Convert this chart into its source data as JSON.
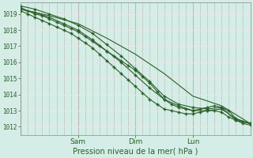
{
  "xlabel": "Pression niveau de la mer( hPa )",
  "ylim": [
    1011.5,
    1019.7
  ],
  "xlim": [
    0,
    96
  ],
  "yticks": [
    1012,
    1013,
    1014,
    1015,
    1016,
    1017,
    1018,
    1019
  ],
  "xtick_positions": [
    24,
    48,
    72
  ],
  "xtick_labels": [
    "Sam",
    "Dim",
    "Lun"
  ],
  "bg_color": "#d4ede6",
  "grid_color_v": "#c0b8b8",
  "grid_color_h": "#e8e8e8",
  "line_color": "#2a5f2a",
  "series1_x": [
    0,
    3,
    6,
    9,
    12,
    15,
    18,
    21,
    24,
    27,
    30,
    33,
    36,
    39,
    42,
    45,
    48,
    51,
    54,
    57,
    60,
    63,
    66,
    69,
    72,
    75,
    78,
    81,
    84,
    87,
    90,
    93,
    96
  ],
  "series1_y": [
    1019.4,
    1019.2,
    1019.0,
    1018.9,
    1018.7,
    1018.5,
    1018.3,
    1018.1,
    1017.9,
    1017.6,
    1017.3,
    1017.0,
    1016.7,
    1016.4,
    1016.1,
    1015.8,
    1015.5,
    1015.1,
    1014.7,
    1014.2,
    1013.7,
    1013.4,
    1013.2,
    1013.1,
    1013.0,
    1013.1,
    1013.2,
    1013.3,
    1013.2,
    1013.0,
    1012.5,
    1012.3,
    1012.2
  ],
  "series2_x": [
    0,
    3,
    6,
    9,
    12,
    15,
    18,
    21,
    24,
    27,
    30,
    33,
    36,
    39,
    42,
    45,
    48,
    51,
    54,
    57,
    60,
    63,
    66,
    69,
    72,
    75,
    78,
    81,
    84,
    87,
    90,
    93,
    96
  ],
  "series2_y": [
    1019.2,
    1019.0,
    1018.8,
    1018.6,
    1018.4,
    1018.2,
    1018.0,
    1017.8,
    1017.5,
    1017.2,
    1016.9,
    1016.5,
    1016.1,
    1015.7,
    1015.3,
    1014.9,
    1014.5,
    1014.1,
    1013.7,
    1013.4,
    1013.1,
    1013.0,
    1012.9,
    1012.8,
    1012.8,
    1012.9,
    1013.0,
    1013.0,
    1012.9,
    1012.6,
    1012.4,
    1012.2,
    1012.1
  ],
  "series3_x": [
    0,
    6,
    12,
    18,
    24,
    30,
    36,
    42,
    48,
    54,
    60,
    66,
    72,
    78,
    84,
    90,
    96
  ],
  "series3_y": [
    1019.3,
    1019.1,
    1018.8,
    1018.4,
    1018.0,
    1017.4,
    1016.7,
    1016.0,
    1015.2,
    1014.4,
    1013.7,
    1013.3,
    1013.0,
    1013.0,
    1013.1,
    1012.5,
    1012.2
  ],
  "series4_x": [
    0,
    12,
    24,
    36,
    48,
    60,
    72,
    84,
    96
  ],
  "series4_y": [
    1019.3,
    1018.9,
    1018.4,
    1017.5,
    1016.5,
    1015.3,
    1013.9,
    1013.3,
    1012.2
  ],
  "series5_x": [
    0,
    6,
    12,
    18,
    24,
    30,
    36,
    42,
    48,
    54,
    60,
    66,
    72,
    78,
    84,
    90,
    96
  ],
  "series5_y": [
    1019.5,
    1019.3,
    1019.0,
    1018.7,
    1018.3,
    1017.8,
    1017.1,
    1016.4,
    1015.6,
    1014.8,
    1013.9,
    1013.4,
    1013.2,
    1013.1,
    1013.2,
    1012.4,
    1012.2
  ]
}
